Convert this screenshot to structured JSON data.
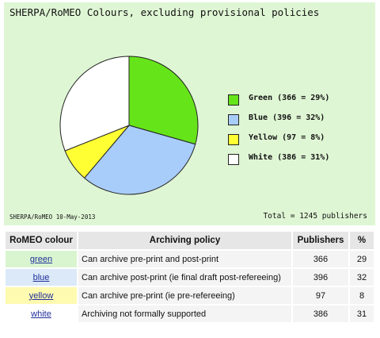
{
  "chart_data": {
    "type": "pie",
    "title": "SHERPA/RoMEO Colours, excluding provisional policies",
    "slices": [
      {
        "name": "Green",
        "value": 366,
        "percent": 29,
        "label": "Green (366 = 29%)",
        "color": "#66e41a"
      },
      {
        "name": "Blue",
        "value": 396,
        "percent": 32,
        "label": "Blue (396 = 32%)",
        "color": "#a9cdfa"
      },
      {
        "name": "Yellow",
        "value": 97,
        "percent": 8,
        "label": "Yellow (97 = 8%)",
        "color": "#ffff33"
      },
      {
        "name": "White",
        "value": 386,
        "percent": 31,
        "label": "White (386 = 31%)",
        "color": "#ffffff"
      }
    ],
    "legend_position": "right",
    "footer_left": "SHERPA/RoMEO 10-May-2013",
    "footer_right": "Total = 1245 publishers"
  },
  "table": {
    "headers": {
      "colour": "RoMEO colour",
      "policy": "Archiving policy",
      "publishers": "Publishers",
      "percent": "%"
    },
    "rows": [
      {
        "colour": "green",
        "bg": "#d9f5cf",
        "policy": "Can archive pre-print and post-print",
        "publishers": "366",
        "percent": "29"
      },
      {
        "colour": "blue",
        "bg": "#dbe9f8",
        "policy": "Can archive post-print (ie final draft post-refereeing)",
        "publishers": "396",
        "percent": "32"
      },
      {
        "colour": "yellow",
        "bg": "#fefab0",
        "policy": "Can archive pre-print (ie pre-refereeing)",
        "publishers": "97",
        "percent": "8"
      },
      {
        "colour": "white",
        "bg": "#ffffff",
        "policy": "Archiving not formally supported",
        "publishers": "386",
        "percent": "31"
      }
    ]
  }
}
